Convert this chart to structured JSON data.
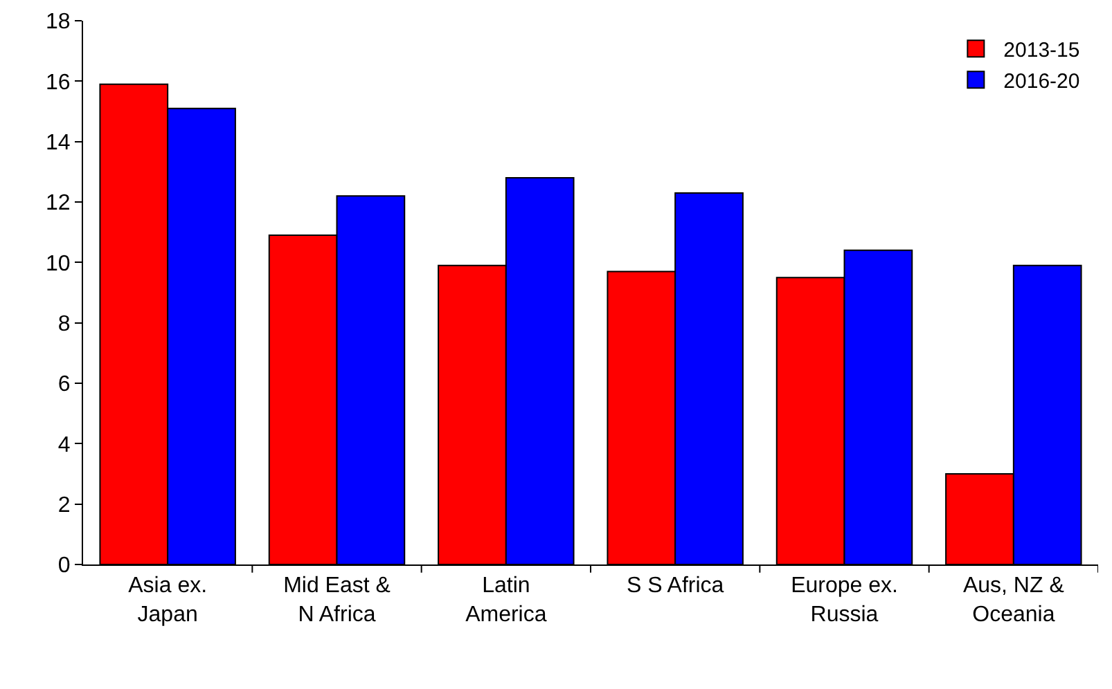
{
  "chart_data": {
    "type": "bar",
    "categories": [
      "Asia ex.\nJapan",
      "Mid East &\nN Africa",
      "Latin\nAmerica",
      "S S Africa",
      "Europe ex.\nRussia",
      "Aus, NZ &\nOceania"
    ],
    "series": [
      {
        "name": "2013-15",
        "color": "#ff0000",
        "values": [
          15.9,
          10.9,
          9.9,
          9.7,
          9.5,
          3.0
        ]
      },
      {
        "name": "2016-20",
        "color": "#0000ff",
        "values": [
          15.1,
          12.2,
          12.8,
          12.3,
          10.4,
          9.9
        ]
      }
    ],
    "ylim": [
      0,
      18
    ],
    "yticks": [
      0,
      2,
      4,
      6,
      8,
      10,
      12,
      14,
      16,
      18
    ],
    "grid": false,
    "legend": "top right"
  }
}
